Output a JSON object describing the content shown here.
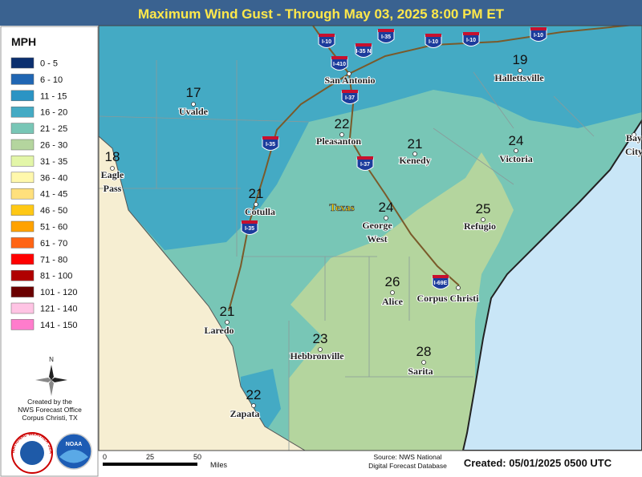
{
  "header": {
    "title": "Maximum Wind Gust - Through May 03, 2025 8:00 PM ET"
  },
  "legend": {
    "unit": "MPH",
    "items": [
      {
        "label": "0 - 5",
        "color": "#0b2f6f"
      },
      {
        "label": "6 - 10",
        "color": "#2066b3"
      },
      {
        "label": "11 - 15",
        "color": "#2b94c4"
      },
      {
        "label": "16 - 20",
        "color": "#44aac4"
      },
      {
        "label": "21 - 25",
        "color": "#78c6b6"
      },
      {
        "label": "26 - 30",
        "color": "#b4d59e"
      },
      {
        "label": "31 - 35",
        "color": "#e3f6a8"
      },
      {
        "label": "36 - 40",
        "color": "#fff8ac"
      },
      {
        "label": "41 - 45",
        "color": "#ffe07c"
      },
      {
        "label": "46 - 50",
        "color": "#ffc814"
      },
      {
        "label": "51 - 60",
        "color": "#ffa200"
      },
      {
        "label": "61 - 70",
        "color": "#ff6414"
      },
      {
        "label": "71 - 80",
        "color": "#ff0000"
      },
      {
        "label": "81 - 100",
        "color": "#b00000"
      },
      {
        "label": "101 - 120",
        "color": "#6a0000"
      },
      {
        "label": "121 - 140",
        "color": "#ffc4e4"
      },
      {
        "label": "141 - 150",
        "color": "#ff7ccc"
      }
    ]
  },
  "compass": "N",
  "credit": [
    "Created by the",
    "NWS Forecast Office",
    "Corpus Christi, TX"
  ],
  "logos": [
    "NATIONAL WEATHER SERVICE",
    "NOAA"
  ],
  "map": {
    "state_label": "Texas",
    "cities": [
      {
        "lines": [
          "Uvalde"
        ],
        "value": 17
      },
      {
        "lines": [
          "Eagle",
          "Pass"
        ],
        "value": 18
      },
      {
        "lines": [
          "San Antonio"
        ]
      },
      {
        "lines": [
          "Hallettsville"
        ],
        "value": 19
      },
      {
        "lines": [
          "Pleasanton"
        ],
        "value": 22
      },
      {
        "lines": [
          "Kenedy"
        ],
        "value": 21
      },
      {
        "lines": [
          "Victoria"
        ],
        "value": 24
      },
      {
        "lines": [
          "Cotulla"
        ],
        "value": 21
      },
      {
        "lines": [
          "George",
          "West"
        ],
        "value": 24
      },
      {
        "lines": [
          "Refugio"
        ],
        "value": 25
      },
      {
        "lines": [
          "Alice"
        ],
        "value": 26
      },
      {
        "lines": [
          "Corpus Christi"
        ]
      },
      {
        "lines": [
          "Laredo"
        ],
        "value": 21
      },
      {
        "lines": [
          "Hebbronville"
        ],
        "value": 23
      },
      {
        "lines": [
          "Sarita"
        ],
        "value": 28
      },
      {
        "lines": [
          "Zapata"
        ],
        "value": 22
      },
      {
        "lines": [
          "Bay",
          "City"
        ]
      }
    ],
    "highways": [
      "I-10",
      "I-410",
      "I-35 N",
      "I-35",
      "I-10",
      "I-10",
      "I-10",
      "I-37",
      "I-35",
      "I-37",
      "I-35",
      "I-69E"
    ]
  },
  "scale": {
    "ticks": [
      0,
      25,
      50
    ],
    "unit": "Miles"
  },
  "source": [
    "Source: NWS National",
    "Digital Forecast Database"
  ],
  "created": "Created: 05/01/2025 0500 UTC"
}
